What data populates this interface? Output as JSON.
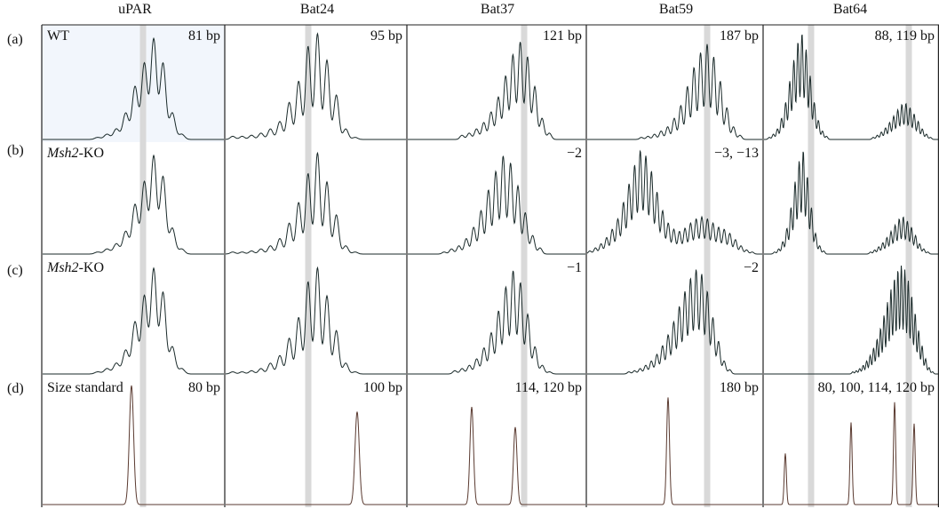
{
  "columns": [
    "uPAR",
    "Bat24",
    "Bat37",
    "Bat59",
    "Bat64"
  ],
  "rows": [
    {
      "label": "(a)",
      "sample": "WT",
      "sample_italic": "",
      "sample_rest": "WT",
      "annotations": [
        "81 bp",
        "95 bp",
        "121 bp",
        "187 bp",
        "88, 119 bp"
      ]
    },
    {
      "label": "(b)",
      "sample": "Msh2-KO",
      "sample_italic": "Msh2",
      "sample_rest": "-KO",
      "annotations": [
        "",
        "",
        "−2",
        "−3, −13",
        ""
      ]
    },
    {
      "label": "(c)",
      "sample": "Msh2-KO",
      "sample_italic": "Msh2",
      "sample_rest": "-KO",
      "annotations": [
        "",
        "",
        "−1",
        "−2",
        ""
      ]
    },
    {
      "label": "(d)",
      "sample": "Size standard",
      "sample_italic": "",
      "sample_rest": "Size standard",
      "annotations": [
        "80 bp",
        "100 bp",
        "114, 120 bp",
        "180 bp",
        "80, 100, 114, 120 bp"
      ]
    }
  ],
  "colors": {
    "trace": "#1a2a2a",
    "reference_band": "#d9d9d9",
    "highlight_fill": "#f2f6fc",
    "border": "#222222",
    "size_trace": "#5a3a30"
  }
}
